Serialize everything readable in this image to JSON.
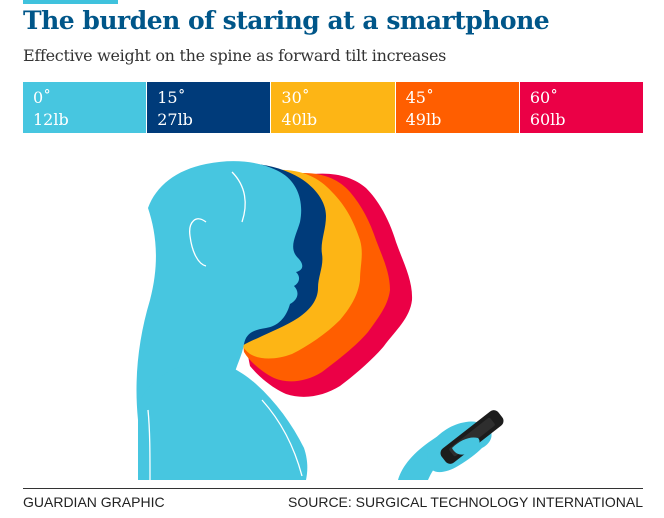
{
  "title": "The burden of staring at a smartphone",
  "subtitle": "Effective weight on the spine as forward tilt increases",
  "legend": [
    {
      "angle": "0˚",
      "weight": "12lb",
      "color": "#47c6e0"
    },
    {
      "angle": "15˚",
      "weight": "27lb",
      "color": "#003b7a"
    },
    {
      "angle": "30˚",
      "weight": "40lb",
      "color": "#fdb515"
    },
    {
      "angle": "45˚",
      "weight": "49lb",
      "color": "#ff5e00"
    },
    {
      "angle": "60˚",
      "weight": "60lb",
      "color": "#eb0046"
    }
  ],
  "footer": {
    "credit": "GUARDIAN GRAPHIC",
    "source": "SOURCE: SURGICAL TECHNOLOGY INTERNATIONAL"
  }
}
